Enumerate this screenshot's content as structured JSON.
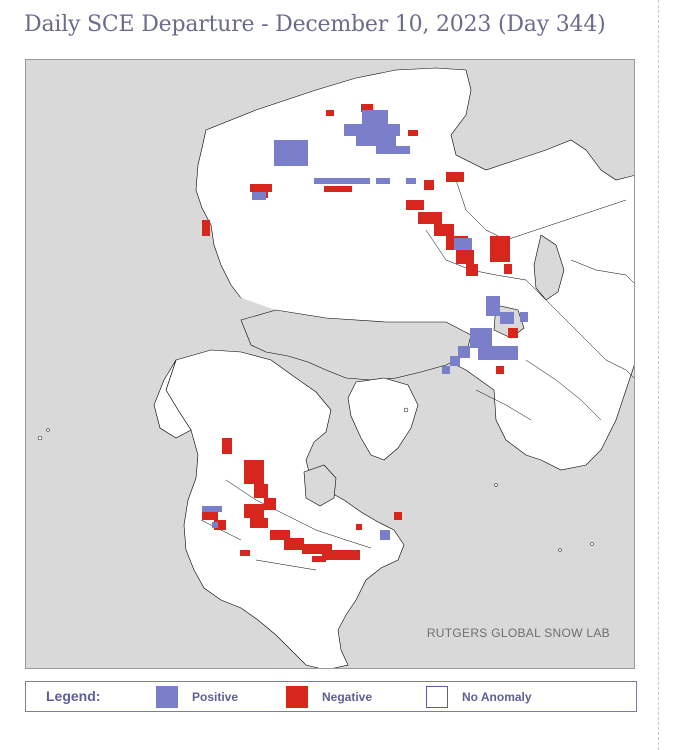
{
  "title": "Daily SCE Departure - December 10, 2023 (Day 344)",
  "credit": "RUTGERS GLOBAL SNOW LAB",
  "legend": {
    "title": "Legend:",
    "items": [
      {
        "label": "Positive",
        "color": "#7b7fc9"
      },
      {
        "label": "Negative",
        "color": "#d7261e"
      },
      {
        "label": "No Anomaly",
        "color": "#ffffff"
      }
    ]
  },
  "colors": {
    "land": "#ffffff",
    "water": "#d9d9d9",
    "positive": "#7b7fc9",
    "negative": "#d7261e",
    "title": "#6b6b8c",
    "legend_text": "#5f5f98"
  }
}
